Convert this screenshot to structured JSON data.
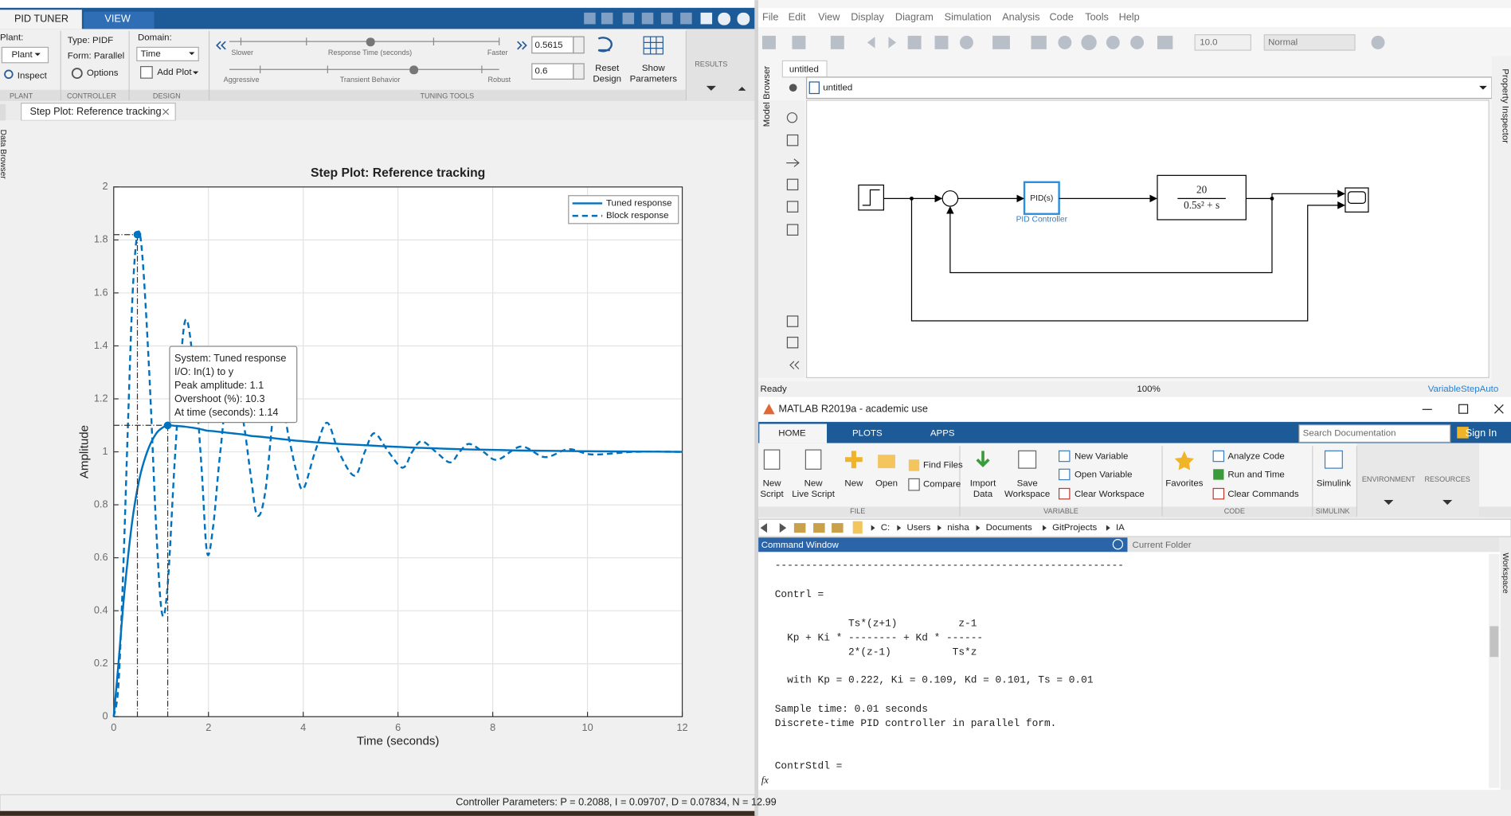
{
  "pid_tuner": {
    "tabs": [
      "PID TUNER",
      "VIEW"
    ],
    "plant": {
      "label": "Plant:",
      "value": "Plant",
      "inspect": "Inspect"
    },
    "controller": {
      "type": "Type: PIDF",
      "form": "Form: Parallel",
      "options": "Options"
    },
    "design": {
      "domain_label": "Domain:",
      "domain_value": "Time",
      "add_plot": "Add Plot"
    },
    "tuning": {
      "slower": "Slower",
      "response_time": "Response Time (seconds)",
      "faster": "Faster",
      "response_time_value": "0.5615",
      "aggressive": "Aggressive",
      "transient": "Transient Behavior",
      "robust": "Robust",
      "transient_value": "0.6",
      "reset": [
        "Reset",
        "Design"
      ],
      "show_parameters": [
        "Show",
        "Parameters"
      ]
    },
    "results": "RESULTS",
    "sections": [
      "PLANT",
      "CONTROLLER",
      "DESIGN",
      "TUNING TOOLS"
    ],
    "side_panel": "Data Browser",
    "document_tab": "Step Plot: Reference tracking",
    "status": "Controller Parameters: P = 0.2088, I = 0.09707, D = 0.07834, N = 12.99"
  },
  "chart_data": {
    "type": "line",
    "title": "Step Plot: Reference tracking",
    "x_label": "Time (seconds)",
    "y_label": "Amplitude",
    "x": [
      0,
      0.1,
      0.2,
      0.3,
      0.4,
      0.5,
      0.6,
      0.75,
      0.9,
      1.02,
      1.14,
      1.3,
      1.5,
      1.7,
      1.85,
      1.97,
      2.1,
      2.25,
      2.5,
      2.75,
      2.9,
      3.03,
      3.2,
      3.45,
      3.7,
      3.85,
      4.0,
      4.25,
      4.5,
      4.75,
      5.08,
      5.3,
      5.5,
      5.8,
      6.1,
      6.3,
      6.5,
      6.8,
      7.1,
      7.3,
      7.5,
      7.8,
      8.1,
      8.6,
      9.1,
      9.6,
      10.1,
      11,
      12
    ],
    "series": [
      {
        "name": "Tuned response",
        "color": "#0072bd",
        "style": "solid",
        "values": [
          0,
          0.2,
          0.42,
          0.6,
          0.75,
          0.86,
          0.94,
          1.02,
          1.07,
          1.09,
          1.1,
          1.098,
          1.095,
          1.09,
          1.085,
          1.08,
          1.078,
          1.075,
          1.07,
          1.065,
          1.06,
          1.058,
          1.055,
          1.05,
          1.045,
          1.042,
          1.04,
          1.036,
          1.033,
          1.03,
          1.027,
          1.025,
          1.023,
          1.02,
          1.018,
          1.016,
          1.015,
          1.013,
          1.011,
          1.01,
          1.009,
          1.008,
          1.007,
          1.005,
          1.004,
          1.003,
          1.002,
          1.001,
          1.0
        ]
      },
      {
        "name": "Block response",
        "color": "#0072bd",
        "style": "dashed",
        "values": [
          0,
          0.12,
          0.55,
          1.1,
          1.6,
          1.82,
          1.75,
          1.3,
          0.7,
          0.39,
          0.5,
          1.0,
          1.49,
          1.3,
          0.95,
          0.62,
          0.72,
          1.0,
          1.36,
          1.1,
          0.9,
          0.76,
          0.85,
          1.24,
          1.05,
          0.93,
          0.86,
          1.0,
          1.11,
          1.0,
          0.91,
          1.0,
          1.07,
          1.0,
          0.94,
          1.0,
          1.04,
          1.0,
          0.96,
          1.0,
          1.03,
          1.0,
          0.97,
          1.02,
          0.98,
          1.01,
          0.99,
          1.0,
          1.0
        ]
      }
    ],
    "xlim": [
      0,
      12
    ],
    "ylim": [
      0,
      2
    ],
    "xticks": [
      0,
      2,
      4,
      6,
      8,
      10,
      12
    ],
    "yticks": [
      0,
      0.2,
      0.4,
      0.6,
      0.8,
      1,
      1.2,
      1.4,
      1.6,
      1.8,
      2
    ],
    "grid": true,
    "legend": "northeast",
    "block_peak": {
      "x": 0.5,
      "y": 1.82
    },
    "datatip": {
      "x": 1.14,
      "y": 1.1,
      "lines": [
        "System: Tuned response",
        "I/O: In(1) to y",
        "Peak amplitude: 1.1",
        "Overshoot (%): 10.3",
        "At time (seconds): 1.14"
      ]
    }
  },
  "simulink": {
    "menu": [
      "File",
      "Edit",
      "View",
      "Display",
      "Diagram",
      "Simulation",
      "Analysis",
      "Code",
      "Tools",
      "Help"
    ],
    "stop_time": "10.0",
    "mode": "Normal",
    "tab": "untitled",
    "breadcrumb": "untitled",
    "model_browser": "Model Browser",
    "property_inspector": "Property Inspector",
    "blocks": {
      "pid": "PID(s)",
      "pid_caption": "PID Controller",
      "tf_num": "20",
      "tf_den": "0.5s² + s"
    },
    "status": [
      "Ready",
      "100%",
      "VariableStepAuto"
    ]
  },
  "matlab": {
    "title": "MATLAB R2019a - academic use",
    "tabs": [
      "HOME",
      "PLOTS",
      "APPS"
    ],
    "search": "Search Documentation",
    "sign_in": "Sign In",
    "buttons": [
      [
        "New",
        "Script"
      ],
      [
        "New",
        "Live Script"
      ],
      [
        "New"
      ],
      [
        "Open"
      ],
      [
        "Find Files"
      ],
      [
        "Compare"
      ],
      [
        "Import",
        "Data"
      ],
      [
        "Save",
        "Workspace"
      ],
      [
        "New Variable"
      ],
      [
        "Open Variable"
      ],
      [
        "Clear Workspace"
      ],
      [
        "Favorites"
      ],
      [
        "Analyze Code"
      ],
      [
        "Run and Time"
      ],
      [
        "Clear Commands"
      ],
      [
        "Simulink"
      ],
      [
        "ENVIRONMENT"
      ],
      [
        "RESOURCES"
      ]
    ],
    "sections": [
      "FILE",
      "VARIABLE",
      "CODE",
      "SIMULINK"
    ],
    "path": [
      "C:",
      "Users",
      "nisha",
      "Documents",
      "GitProjects",
      "IA"
    ],
    "command_window": "Command Window",
    "current_folder": "Current Folder",
    "workspace": "Workspace",
    "fx": "fx",
    "command_lines": [
      "---------------------------------------------------------",
      "Contrl =",
      "            Ts*(z+1)          z-1",
      "  Kp + Ki * -------- + Kd * ------",
      "            2*(z-1)          Ts*z",
      "  with Kp = 0.222, Ki = 0.109, Kd = 0.101, Ts = 0.01",
      "Sample time: 0.01 seconds",
      "Discrete-time PID controller in parallel form.",
      "ContrStdl ="
    ]
  }
}
